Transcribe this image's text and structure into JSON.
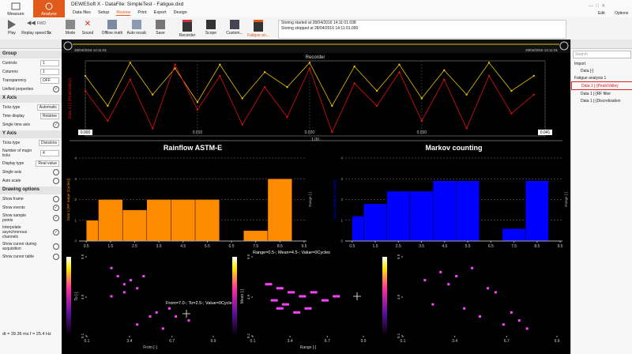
{
  "app": {
    "title": "DEWESoft X - DataFile: SimpleTest - Fatigue.dxd",
    "modes": [
      "Measure",
      "Analyse"
    ],
    "tabs": [
      "Data files",
      "Setup",
      "Review",
      "Print",
      "Export",
      "Design"
    ],
    "right_menu": [
      "Edit",
      "Options"
    ]
  },
  "toolbar": {
    "play": "Play",
    "replay_speed": "Replay speed",
    "speed": "5x",
    "fwd": "FWD",
    "buttons": [
      "Mode",
      "Sound",
      "Offline math",
      "Auto recalc",
      "Save"
    ],
    "instruments": [
      "Recorder",
      "Scope",
      "Custom...",
      "Fatigue an..."
    ],
    "log": [
      "Storing started at 28/04/2016 14:11:01.038",
      "Storing stopped at 28/04/2016 14:11:01.099"
    ]
  },
  "left_panel": {
    "sections": [
      {
        "title": "Group",
        "rows": [
          {
            "label": "Controls",
            "value": "1"
          },
          {
            "label": "Columns",
            "value": "1"
          },
          {
            "label": "Transparency",
            "value": "OFF"
          },
          {
            "label": "Unified properties",
            "checked": true
          }
        ]
      },
      {
        "title": "X Axis",
        "rows": [
          {
            "label": "Ticks type",
            "value": "Automatic"
          },
          {
            "label": "Time display",
            "value": "Relative"
          },
          {
            "label": "Single time axis",
            "checked": true
          }
        ]
      },
      {
        "title": "Y Axis",
        "rows": [
          {
            "label": "Ticks type",
            "value": "Divisions"
          },
          {
            "label": "Number of major ticks",
            "value": "4"
          },
          {
            "label": "Display type",
            "value": "Real value"
          },
          {
            "label": "Single axis",
            "checked": false
          },
          {
            "label": "Auto scale",
            "checked": false
          }
        ]
      },
      {
        "title": "Drawing options",
        "rows": [
          {
            "label": "Show frame",
            "checked": false
          },
          {
            "label": "Show events",
            "checked": true
          },
          {
            "label": "Show sample points",
            "checked": true
          },
          {
            "label": "Interpolate asynchronous channels",
            "checked": true
          },
          {
            "label": "Show cursor during acquisition",
            "checked": false
          },
          {
            "label": "Show cursor table",
            "checked": false
          }
        ]
      }
    ],
    "status": "dt = 39.36 ms  f = 25.4 Hz"
  },
  "right_panel": {
    "search": "Search",
    "tree": [
      "Import",
      "Data [-]",
      "Fatigue analysis 1",
      "Data 1 [-]Peak/Valley",
      "Data 1 [-]RF filter",
      "Data 1 [-]Discretization"
    ]
  },
  "overview": {
    "start": "28/04/2016 14:11:01",
    "end": "28/04/2016 14:11:01"
  },
  "recorder": {
    "type": "line",
    "title": "Recorder",
    "y_label": "Data 1 [-] (Peak/Valley)",
    "x_scale": "1.00",
    "x": [
      0,
      0.002,
      0.004,
      0.006,
      0.008,
      0.01,
      0.012,
      0.014,
      0.016,
      0.018,
      0.02,
      0.022,
      0.024,
      0.026,
      0.028,
      0.03,
      0.032,
      0.034,
      0.036,
      0.038,
      0.04
    ],
    "series": [
      {
        "name": "Data 1 [-]",
        "color": "#e8c000",
        "values": [
          0.6,
          -0.2,
          0.95,
          0.1,
          0.8,
          -0.1,
          0.9,
          0.0,
          0.7,
          0.3,
          0.95,
          -0.2,
          0.85,
          0.2,
          0.9,
          0.0,
          0.75,
          0.1,
          0.95,
          0.2,
          0.6
        ]
      },
      {
        "name": "Data 1 [-]Peak/Valley",
        "color": "#e01010",
        "values": [
          0.2,
          -0.6,
          0.5,
          -0.8,
          0.9,
          -0.3,
          0.6,
          -0.7,
          0.3,
          -0.5,
          0.8,
          -0.9,
          0.4,
          -0.2,
          0.7,
          -0.6,
          0.5,
          -0.8,
          0.6,
          -0.4,
          0.1
        ]
      }
    ],
    "xlim": [
      0,
      0.041
    ],
    "xticks": [
      {
        "value": 0,
        "label": "0.000"
      },
      {
        "value": 0.01,
        "label": "0.010"
      },
      {
        "value": 0.02,
        "label": "0.020"
      },
      {
        "value": 0.03,
        "label": "0.030"
      },
      {
        "value": 0.041,
        "label": "0.041"
      }
    ],
    "ylim": [
      -1,
      1
    ]
  },
  "rainflow": {
    "type": "histogram",
    "title": "Rainflow ASTM-E",
    "y_label": "Data 1 [RF range (Cycles)]",
    "y2_label": "Range [-]",
    "color": "#ff8c00",
    "bins": [
      0.5,
      1,
      2,
      3,
      4,
      5,
      6,
      7,
      8,
      9
    ],
    "values": [
      1,
      2,
      1.5,
      2,
      2,
      2,
      0,
      0.5,
      3
    ],
    "xlim": [
      0.2,
      9.6
    ],
    "xticks": [
      0.5,
      1.5,
      2.5,
      3.5,
      4.5,
      5.5,
      6.5,
      7.5,
      8.5,
      9.5
    ],
    "ylim": [
      0,
      4
    ],
    "yticks": [
      0,
      1,
      2,
      3,
      4
    ]
  },
  "markov": {
    "type": "histogram",
    "title": "Markov counting",
    "y_label": "Data 1 [Markov (Cycles)]",
    "y2_label": "Range [-]",
    "color": "#0000ff",
    "bins": [
      0.5,
      1,
      2,
      3,
      4,
      5,
      6,
      7,
      8,
      9
    ],
    "values": [
      1.2,
      1.8,
      2.4,
      2.4,
      2.9,
      2.9,
      0,
      0.6,
      2.9
    ],
    "xlim": [
      0.2,
      9.6
    ],
    "xticks": [
      0.5,
      1.5,
      2.5,
      3.5,
      4.5,
      5.5,
      6.5,
      7.5,
      8.5,
      9.5
    ],
    "ylim": [
      0,
      4
    ],
    "yticks": [
      0,
      1,
      2,
      3,
      4
    ]
  },
  "matrices": [
    {
      "type": "scatter",
      "x_label": "From [-]",
      "y_label": "To [-]",
      "cursor": "From=7.0-; To=2.5-; Value=0Cycles",
      "x": [
        2.0,
        2.5,
        3.0,
        3.5,
        4.0,
        2.0,
        3.0,
        4.5,
        5.5,
        6.5,
        7.0,
        8.0,
        4.0,
        5.0,
        6.0
      ],
      "y": [
        8.5,
        7.5,
        6.5,
        7.0,
        6.0,
        5.0,
        5.5,
        7.5,
        3.0,
        3.5,
        2.5,
        2.0,
        1.5,
        2.5,
        1.0
      ],
      "xlim": [
        0.1,
        9.9
      ],
      "xticks": [
        0.1,
        3.4,
        6.7,
        9.9
      ],
      "ylim": [
        0.1,
        9.9
      ],
      "yticks": [
        0.1,
        4.9,
        9.9
      ]
    },
    {
      "type": "scatter",
      "x_label": "Range [-]",
      "y_label": "Mean [-]",
      "cursor": "Range=0.5-; Mean=4.5-; Value=0Cycles",
      "x": [
        1.5,
        2.5,
        3.5,
        4.5,
        5.5,
        2.0,
        3.0,
        6.5,
        7.5,
        2.5,
        4.0,
        5.0
      ],
      "y": [
        6.5,
        6.0,
        5.5,
        5.0,
        5.5,
        4.5,
        4.0,
        4.5,
        5.0,
        3.5,
        3.0,
        3.5
      ],
      "xlim": [
        0.1,
        9.9
      ],
      "xticks": [
        0.1,
        3.4,
        6.7,
        9.9
      ],
      "ylim": [
        0.1,
        9.9
      ],
      "yticks": [
        0.1,
        4.9,
        9.9
      ]
    },
    {
      "type": "scatter",
      "x": [
        1.5,
        2.5,
        3.0,
        3.5,
        4.5,
        5.5,
        6.0,
        2.0,
        4.0,
        5.0,
        7.0,
        7.5,
        8.0,
        6.5
      ],
      "y": [
        7.0,
        8.0,
        6.5,
        7.5,
        8.5,
        6.0,
        5.5,
        4.0,
        3.5,
        2.5,
        3.0,
        2.0,
        1.0,
        1.5
      ],
      "xlim": [
        0.1,
        9.9
      ],
      "xticks": [
        0.1,
        3.4,
        6.7,
        9.9
      ],
      "ylim": [
        0.1,
        9.9
      ],
      "yticks": [
        0.1,
        4.9,
        9.9
      ]
    }
  ]
}
